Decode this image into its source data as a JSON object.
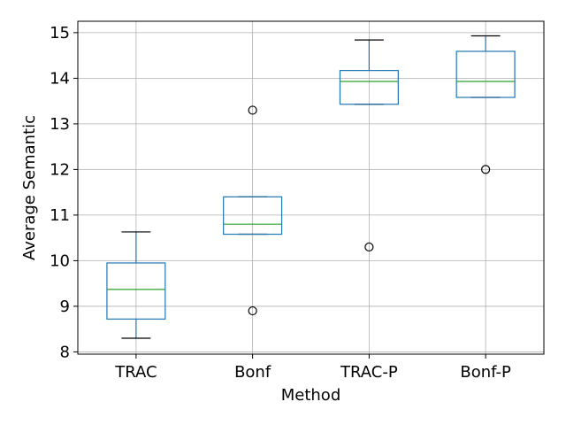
{
  "chart_data": {
    "type": "box",
    "xlabel": "Method",
    "ylabel": "Average Semantic",
    "ylim": [
      7.95,
      15.25
    ],
    "yticks": [
      8,
      9,
      10,
      11,
      12,
      13,
      14,
      15
    ],
    "grid": true,
    "categories": [
      "TRAC",
      "Bonf",
      "TRAC-P",
      "Bonf-P"
    ],
    "boxes": [
      {
        "name": "TRAC",
        "whisker_low": 8.3,
        "q1": 8.72,
        "median": 9.37,
        "q3": 9.95,
        "whisker_high": 10.63,
        "outliers": []
      },
      {
        "name": "Bonf",
        "whisker_low": 10.58,
        "q1": 10.58,
        "median": 10.8,
        "q3": 11.4,
        "whisker_high": 11.4,
        "outliers": [
          13.3,
          8.9
        ]
      },
      {
        "name": "TRAC-P",
        "whisker_low": 13.43,
        "q1": 13.43,
        "median": 13.93,
        "q3": 14.17,
        "whisker_high": 14.84,
        "outliers": [
          10.3
        ]
      },
      {
        "name": "Bonf-P",
        "whisker_low": 13.58,
        "q1": 13.58,
        "median": 13.93,
        "q3": 14.59,
        "whisker_high": 14.93,
        "outliers": [
          12.0
        ]
      }
    ],
    "colors": {
      "box": "#1f77b4",
      "median": "#2ca02c",
      "whisker": "#1f77b4",
      "cap": "#000000",
      "grid": "#b0b0b0",
      "outlier": "#000000"
    }
  }
}
